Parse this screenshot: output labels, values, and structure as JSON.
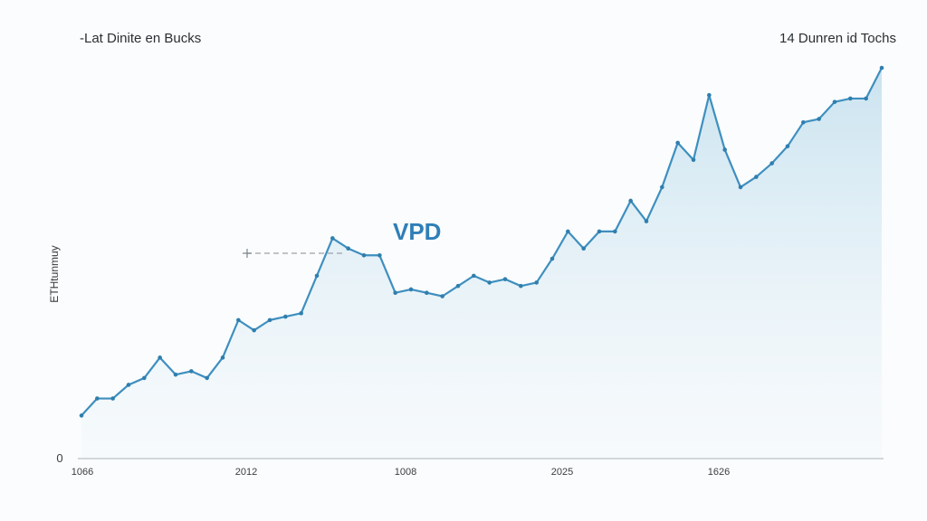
{
  "header": {
    "left_label": "-Lat Dinite en Bucks",
    "right_label": "14 Dunren id Tochs"
  },
  "colors": {
    "line": "#3e8fbf",
    "marker": "#2f7fae",
    "area_top": "#c8e2ef",
    "annotation": "#2f7fb8",
    "axis": "#aab2b8"
  },
  "chart_data": {
    "type": "area",
    "title": "",
    "xlabel": "",
    "ylabel": "ETHtunmuy",
    "x_tick_labels": [
      "1066",
      "2012",
      "1008",
      "2025",
      "1626"
    ],
    "y_tick_labels": [
      "0"
    ],
    "ylim": [
      0,
      100
    ],
    "grid": false,
    "annotation": {
      "text": "VPD",
      "at_index": 16
    },
    "series": [
      {
        "values": [
          6,
          11,
          11,
          15,
          17,
          23,
          18,
          19,
          17,
          23,
          34,
          31,
          34,
          35,
          36,
          47,
          58,
          55,
          53,
          53,
          42,
          43,
          42,
          41,
          44,
          47,
          45,
          46,
          44,
          45,
          52,
          60,
          55,
          60,
          60,
          69,
          63,
          73,
          86,
          81,
          100,
          84,
          73,
          76,
          80,
          85,
          92,
          93,
          98,
          99,
          99,
          108
        ]
      }
    ]
  }
}
